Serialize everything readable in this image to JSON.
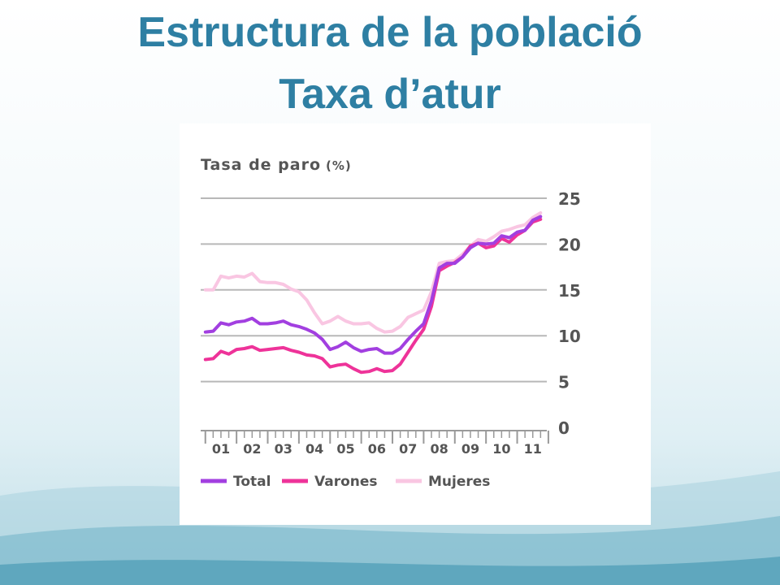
{
  "slide": {
    "title_line1": "Estructura de la població",
    "title_line2": "Taxa d’atur",
    "accent_color": "#2e7fa3"
  },
  "chart_data": {
    "type": "line",
    "title": "Tasa de paro",
    "unit": "(%)",
    "x_tick_labels": [
      "01",
      "02",
      "03",
      "04",
      "05",
      "06",
      "07",
      "08",
      "09",
      "10",
      "11"
    ],
    "y_ticks": [
      0,
      5,
      10,
      15,
      20,
      25
    ],
    "ylim": [
      0,
      25
    ],
    "grid": true,
    "y_axis_position": "right",
    "legend_position": "bottom",
    "x": [
      2001.0,
      2001.25,
      2001.5,
      2001.75,
      2002.0,
      2002.25,
      2002.5,
      2002.75,
      2003.0,
      2003.25,
      2003.5,
      2003.75,
      2004.0,
      2004.25,
      2004.5,
      2004.75,
      2005.0,
      2005.25,
      2005.5,
      2005.75,
      2006.0,
      2006.25,
      2006.5,
      2006.75,
      2007.0,
      2007.25,
      2007.5,
      2007.75,
      2008.0,
      2008.25,
      2008.5,
      2008.75,
      2009.0,
      2009.25,
      2009.5,
      2009.75,
      2010.0,
      2010.25,
      2010.5,
      2010.75,
      2011.0,
      2011.25,
      2011.5,
      2011.75
    ],
    "series": [
      {
        "name": "Total",
        "color": "#a23fe0",
        "values": [
          10.4,
          10.5,
          11.4,
          11.2,
          11.5,
          11.6,
          11.9,
          11.3,
          11.3,
          11.4,
          11.6,
          11.2,
          11.0,
          10.7,
          10.3,
          9.6,
          8.5,
          8.8,
          9.3,
          8.7,
          8.3,
          8.5,
          8.6,
          8.1,
          8.1,
          8.6,
          9.6,
          10.5,
          11.3,
          13.8,
          17.4,
          17.9,
          17.9,
          18.6,
          19.6,
          20.1,
          20.0,
          20.1,
          20.9,
          20.7,
          21.3,
          21.5,
          22.6,
          23.0
        ]
      },
      {
        "name": "Varones",
        "color": "#ee3399",
        "values": [
          7.4,
          7.5,
          8.3,
          8.0,
          8.5,
          8.6,
          8.8,
          8.4,
          8.5,
          8.6,
          8.7,
          8.4,
          8.2,
          7.9,
          7.8,
          7.5,
          6.6,
          6.8,
          6.9,
          6.4,
          6.0,
          6.1,
          6.4,
          6.1,
          6.2,
          6.9,
          8.2,
          9.5,
          10.7,
          13.2,
          17.1,
          17.6,
          18.0,
          18.6,
          19.8,
          20.1,
          19.6,
          19.8,
          20.6,
          20.2,
          21.0,
          21.5,
          22.4,
          22.7
        ]
      },
      {
        "name": "Mujeres",
        "color": "#f9c6e2",
        "values": [
          15.0,
          15.0,
          16.5,
          16.3,
          16.5,
          16.4,
          16.8,
          15.9,
          15.8,
          15.8,
          15.6,
          15.1,
          14.8,
          13.9,
          12.5,
          11.3,
          11.6,
          12.1,
          11.6,
          11.3,
          11.3,
          11.4,
          10.8,
          10.4,
          10.5,
          11.0,
          12.0,
          12.4,
          12.8,
          14.8,
          17.9,
          18.1,
          18.2,
          18.9,
          19.8,
          20.5,
          20.3,
          20.8,
          21.4,
          21.6,
          21.9,
          22.1,
          22.9,
          23.4
        ]
      }
    ]
  }
}
